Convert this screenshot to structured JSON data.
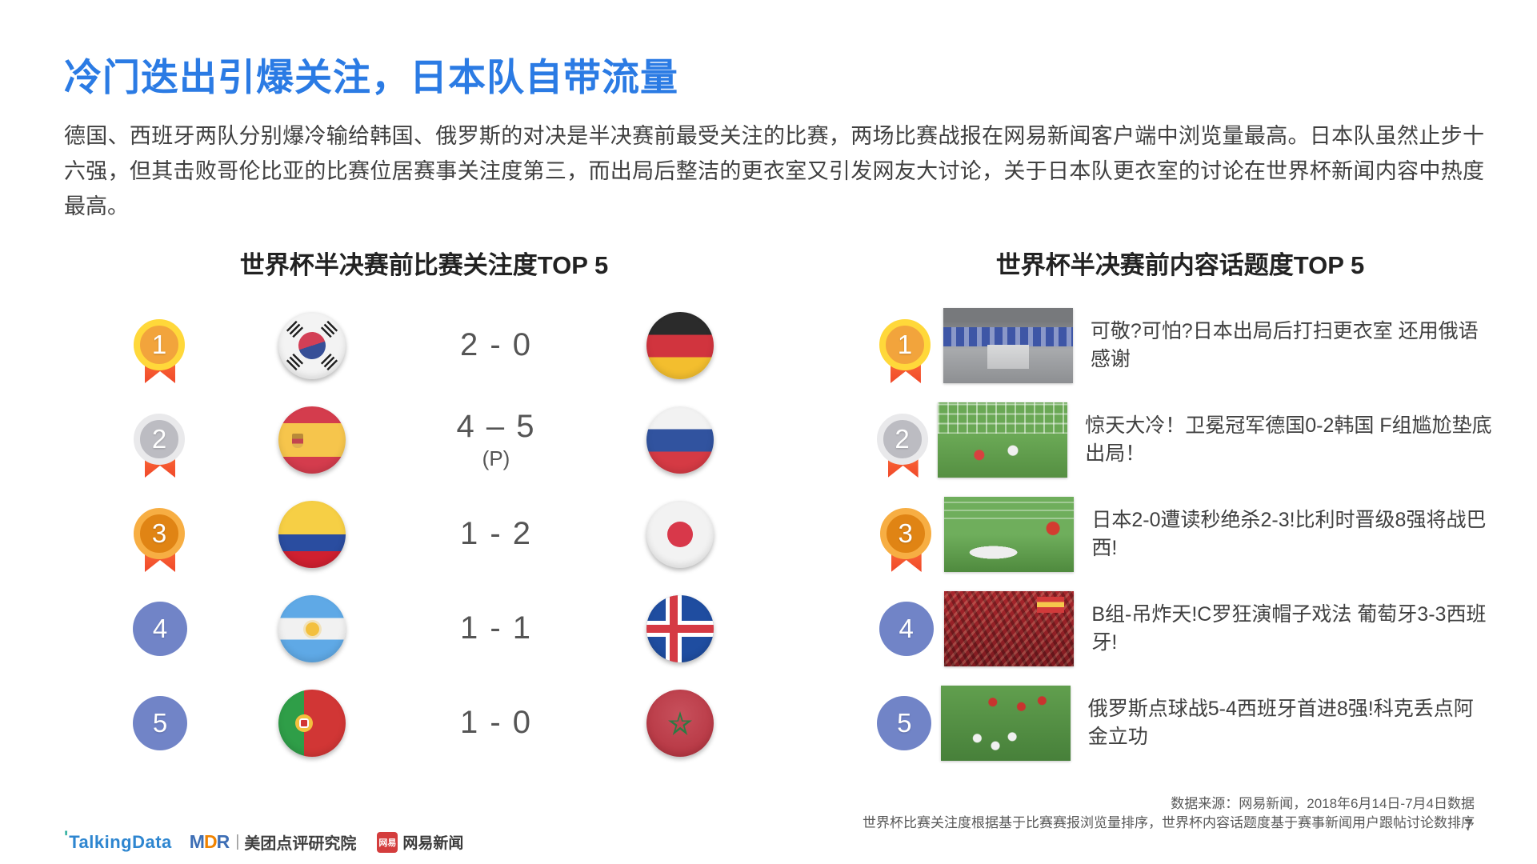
{
  "slide": {
    "title": "冷门迭出引爆关注，日本队自带流量",
    "paragraph": "德国、西班牙两队分别爆冷输给韩国、俄罗斯的对决是半决赛前最受关注的比赛，两场比赛战报在网易新闻客户端中浏览量最高。日本队虽然止步十六强，但其击败哥伦比亚的比赛位居赛事关注度第三，而出局后整洁的更衣室又引发网友大讨论，关于日本队更衣室的讨论在世界杯新闻内容中热度最高。",
    "page_number": "7"
  },
  "left_panel": {
    "title": "世界杯半决赛前比赛关注度TOP 5",
    "rows": [
      {
        "rank": "1",
        "medal": "gold",
        "home_flag": "south-korea",
        "score": "2 - 0",
        "score_note": "",
        "away_flag": "germany"
      },
      {
        "rank": "2",
        "medal": "silver",
        "home_flag": "spain",
        "score": "4 – 5",
        "score_note": "(P)",
        "away_flag": "russia"
      },
      {
        "rank": "3",
        "medal": "bronze",
        "home_flag": "colombia",
        "score": "1 - 2",
        "score_note": "",
        "away_flag": "japan"
      },
      {
        "rank": "4",
        "medal": "plain",
        "home_flag": "argentina",
        "score": "1 - 1",
        "score_note": "",
        "away_flag": "iceland"
      },
      {
        "rank": "5",
        "medal": "plain",
        "home_flag": "portugal",
        "score": "1 - 0",
        "score_note": "",
        "away_flag": "morocco"
      }
    ]
  },
  "right_panel": {
    "title": "世界杯半决赛前内容话题度TOP 5",
    "rows": [
      {
        "rank": "1",
        "medal": "gold",
        "thumbnail": "japan-locker-room-photo",
        "headline": "可敬?可怕?日本出局后打扫更衣室 还用俄语感谢"
      },
      {
        "rank": "2",
        "medal": "silver",
        "thumbnail": "germany-korea-match-photo",
        "headline": "惊天大冷！卫冕冠军德国0-2韩国 F组尴尬垫底出局！"
      },
      {
        "rank": "3",
        "medal": "bronze",
        "thumbnail": "japan-belgium-match-photo",
        "headline": "日本2-0遭读秒绝杀2-3!比利时晋级8强将战巴西!"
      },
      {
        "rank": "4",
        "medal": "plain",
        "thumbnail": "spain-fans-crowd-photo",
        "headline": "B组-吊炸天!C罗狂演帽子戏法 葡萄牙3-3西班牙!"
      },
      {
        "rank": "5",
        "medal": "plain",
        "thumbnail": "russia-players-celebrate-photo",
        "headline": "俄罗斯点球战5-4西班牙首进8强!科克丢点阿金立功"
      }
    ]
  },
  "footer": {
    "source_line1": "数据来源：网易新闻，2018年6月14日-7月4日数据",
    "source_line2": "世界杯比赛关注度根据基于比赛赛报浏览量排序，世界杯内容话题度基于赛事新闻用户跟帖讨论数排序",
    "logos": {
      "talkingdata": "TalkingData",
      "mdr_m": "M",
      "mdr_d": "D",
      "mdr_r": "R",
      "separator": "|",
      "meituan": "美团点评研究院",
      "netease_badge": "网易",
      "netease": "网易新闻"
    }
  },
  "colors": {
    "title_blue": "#2b7be4",
    "body_text": "#404040",
    "score_text": "#555555",
    "gold_ring": "#ffd83a",
    "gold_fill": "#f2a43c",
    "silver_ring": "#e9e9eb",
    "silver_fill": "#bcbcc2",
    "bronze_ring": "#f7ae43",
    "bronze_fill": "#e08414",
    "rank_blue": "#7184c7",
    "ribbon_orange": "#f0482a"
  }
}
